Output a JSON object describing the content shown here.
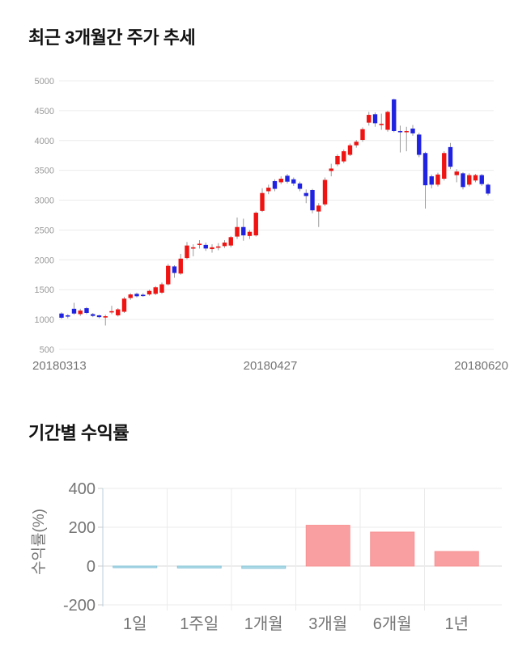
{
  "section_price": {
    "title": "최근 3개월간 주가 추세"
  },
  "section_return": {
    "title": "기간별 수익률"
  },
  "chart_data": [
    {
      "type": "candlestick",
      "title": "최근 3개월간 주가 추세",
      "ylim": [
        500,
        5000
      ],
      "y_ticks": [
        5000,
        4500,
        4000,
        3500,
        3000,
        2500,
        2000,
        1500,
        1000,
        500
      ],
      "x_labels": [
        "20180313",
        "20180427",
        "20180620"
      ],
      "grid": true,
      "colors": {
        "up": "#ef1312",
        "down": "#1f22e0",
        "wick": "#9a9a9a",
        "grid": "#ececec",
        "tick_text": "#999999",
        "xlabel_text": "#757575"
      },
      "ohlc_order": "open,high,low,close",
      "candles": [
        [
          1100,
          1120,
          1010,
          1030
        ],
        [
          1070,
          1090,
          1020,
          1055
        ],
        [
          1180,
          1280,
          1080,
          1100
        ],
        [
          1090,
          1180,
          1060,
          1150
        ],
        [
          1190,
          1210,
          1090,
          1110
        ],
        [
          1090,
          1110,
          1040,
          1060
        ],
        [
          1070,
          1080,
          1020,
          1040
        ],
        [
          1040,
          1080,
          900,
          1055
        ],
        [
          1120,
          1230,
          1090,
          1140
        ],
        [
          1070,
          1190,
          1050,
          1170
        ],
        [
          1130,
          1380,
          1110,
          1350
        ],
        [
          1360,
          1440,
          1330,
          1420
        ],
        [
          1430,
          1450,
          1370,
          1390
        ],
        [
          1415,
          1440,
          1380,
          1405
        ],
        [
          1420,
          1500,
          1400,
          1480
        ],
        [
          1430,
          1560,
          1410,
          1540
        ],
        [
          1450,
          1620,
          1430,
          1590
        ],
        [
          1590,
          1930,
          1570,
          1900
        ],
        [
          1890,
          1910,
          1700,
          1780
        ],
        [
          1770,
          2100,
          1750,
          2020
        ],
        [
          2030,
          2300,
          2010,
          2240
        ],
        [
          2190,
          2260,
          2060,
          2210
        ],
        [
          2260,
          2330,
          2190,
          2270
        ],
        [
          2250,
          2290,
          2150,
          2190
        ],
        [
          2180,
          2260,
          2120,
          2210
        ],
        [
          2215,
          2280,
          2160,
          2225
        ],
        [
          2230,
          2330,
          2200,
          2290
        ],
        [
          2240,
          2400,
          2210,
          2380
        ],
        [
          2390,
          2710,
          2350,
          2550
        ],
        [
          2550,
          2690,
          2320,
          2410
        ],
        [
          2400,
          2500,
          2350,
          2470
        ],
        [
          2410,
          2810,
          2390,
          2790
        ],
        [
          2820,
          3200,
          2800,
          3120
        ],
        [
          3150,
          3260,
          3100,
          3210
        ],
        [
          3320,
          3350,
          3150,
          3190
        ],
        [
          3300,
          3400,
          3270,
          3360
        ],
        [
          3410,
          3440,
          3280,
          3310
        ],
        [
          3350,
          3380,
          3240,
          3280
        ],
        [
          3280,
          3310,
          3150,
          3190
        ],
        [
          3120,
          3180,
          2950,
          3070
        ],
        [
          3170,
          3190,
          2780,
          2830
        ],
        [
          2810,
          2950,
          2550,
          2910
        ],
        [
          2930,
          3380,
          2900,
          3340
        ],
        [
          3490,
          3610,
          3400,
          3530
        ],
        [
          3600,
          3770,
          3570,
          3740
        ],
        [
          3650,
          3850,
          3620,
          3820
        ],
        [
          3760,
          3950,
          3740,
          3920
        ],
        [
          3920,
          4010,
          3880,
          3980
        ],
        [
          4010,
          4220,
          3980,
          4190
        ],
        [
          4300,
          4480,
          4250,
          4430
        ],
        [
          4440,
          4470,
          4230,
          4290
        ],
        [
          4260,
          4450,
          4180,
          4280
        ],
        [
          4180,
          4500,
          4150,
          4480
        ],
        [
          4690,
          4700,
          4140,
          4160
        ],
        [
          4160,
          4250,
          3800,
          4140
        ],
        [
          4140,
          4230,
          3820,
          4160
        ],
        [
          4200,
          4260,
          4080,
          4120
        ],
        [
          4100,
          4130,
          3720,
          3760
        ],
        [
          3790,
          3810,
          2860,
          3250
        ],
        [
          3400,
          3430,
          3200,
          3260
        ],
        [
          3260,
          3460,
          3230,
          3430
        ],
        [
          3360,
          3820,
          3330,
          3790
        ],
        [
          3890,
          3960,
          3520,
          3560
        ],
        [
          3420,
          3520,
          3300,
          3480
        ],
        [
          3450,
          3470,
          3180,
          3220
        ],
        [
          3260,
          3450,
          3230,
          3420
        ],
        [
          3330,
          3440,
          3300,
          3420
        ],
        [
          3420,
          3440,
          3240,
          3270
        ],
        [
          3260,
          3280,
          3080,
          3110
        ]
      ]
    },
    {
      "type": "bar",
      "title": "기간별 수익률",
      "ylabel": "수익률(%)",
      "categories": [
        "1일",
        "1주일",
        "1개월",
        "3개월",
        "6개월",
        "1년"
      ],
      "values": [
        -4,
        -10,
        -12,
        210,
        175,
        75
      ],
      "y_ticks": [
        400,
        200,
        0,
        -200
      ],
      "ylim": [
        -260,
        440
      ],
      "grid": true,
      "legend": "none",
      "colors": {
        "positive": "#fa9fa1",
        "positive_border": "#f79092",
        "negative": "#aedbe8",
        "negative_border": "#8ac5d9",
        "axis": "#b9cfdd",
        "grid": "#ebebeb",
        "zero_line": "#d9d9d9",
        "tick_text": "#757575"
      }
    }
  ]
}
